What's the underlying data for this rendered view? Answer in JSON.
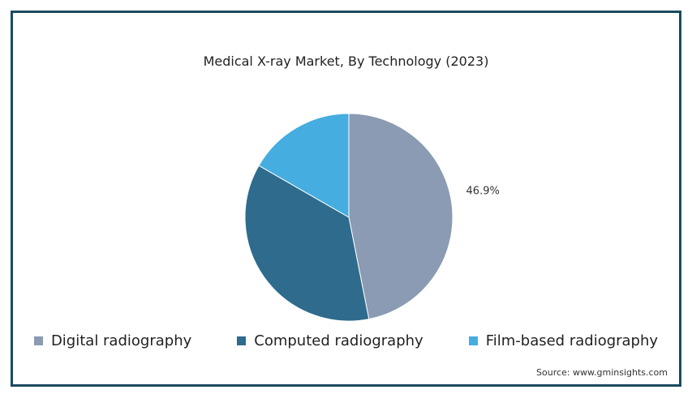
{
  "chart_data": {
    "type": "pie",
    "title": "Medical X-ray Market, By Technology (2023)",
    "categories": [
      "Digital radiography",
      "Computed radiography",
      "Film-based radiography"
    ],
    "values": [
      46.9,
      36.4,
      16.7
    ],
    "colors": [
      "#8a9bb3",
      "#2e6b8c",
      "#46ade0"
    ],
    "data_labels": [
      "46.9%",
      "",
      ""
    ],
    "legend_position": "bottom"
  },
  "source": "Source: www.gminsights.com"
}
